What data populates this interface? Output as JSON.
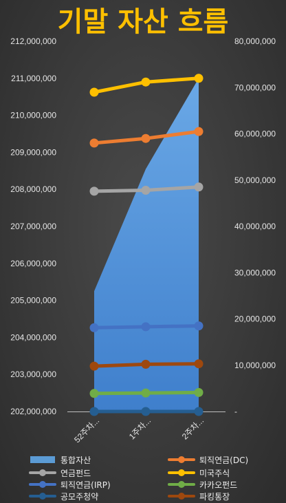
{
  "chart_data": {
    "type": "line",
    "title": "기말 자산 흐름",
    "categories": [
      "52주차...",
      "1주차...",
      "2주차..."
    ],
    "left_axis": {
      "ylim": [
        202000000,
        212000000
      ],
      "ticks": [
        "202,000,000",
        "203,000,000",
        "204,000,000",
        "205,000,000",
        "206,000,000",
        "207,000,000",
        "208,000,000",
        "209,000,000",
        "210,000,000",
        "211,000,000",
        "212,000,000"
      ]
    },
    "right_axis": {
      "ylim": [
        0,
        80000000
      ],
      "ticks": [
        "-",
        "10,000,000",
        "20,000,000",
        "30,000,000",
        "40,000,000",
        "50,000,000",
        "60,000,000",
        "70,000,000",
        "80,000,000"
      ]
    },
    "grid": false,
    "legend_position": "bottom",
    "series": [
      {
        "name": "통합자산",
        "type": "area",
        "axis": "left",
        "color": "#5b9bd5",
        "values": [
          205250000,
          208550000,
          211000000
        ]
      },
      {
        "name": "퇴직연금(DC)",
        "type": "line",
        "axis": "right",
        "color": "#ed7d31",
        "values": [
          58000000,
          59000000,
          60500000
        ]
      },
      {
        "name": "연금펀드",
        "type": "line",
        "axis": "right",
        "color": "#a5a5a5",
        "values": [
          47600000,
          47800000,
          48500000
        ]
      },
      {
        "name": "미국주식",
        "type": "line",
        "axis": "right",
        "color": "#ffc000",
        "values": [
          69000000,
          71200000,
          72000000
        ]
      },
      {
        "name": "퇴직연금(IRP)",
        "type": "line",
        "axis": "right",
        "color": "#4472c4",
        "values": [
          18100000,
          18300000,
          18500000
        ]
      },
      {
        "name": "카카오펀드",
        "type": "line",
        "axis": "right",
        "color": "#70ad47",
        "values": [
          3900000,
          4000000,
          4100000
        ]
      },
      {
        "name": "공모주청약",
        "type": "line",
        "axis": "right",
        "color": "#255e91",
        "values": [
          0,
          0,
          0
        ]
      },
      {
        "name": "파킹통장",
        "type": "line",
        "axis": "right",
        "color": "#9e480e",
        "values": [
          9800000,
          10200000,
          10300000
        ]
      }
    ]
  }
}
